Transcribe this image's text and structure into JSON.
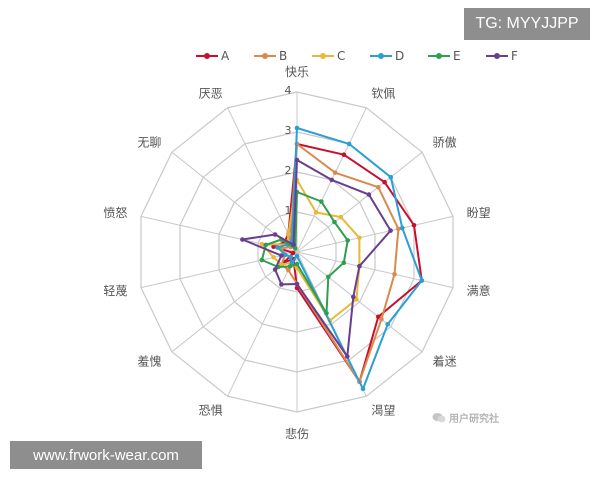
{
  "watermarks": {
    "telegram": "TG: MYYJJPP",
    "website": "www.frwork-wear.com",
    "source": "用户研究社"
  },
  "chart_data": {
    "type": "radar",
    "title": "",
    "axes": [
      "快乐",
      "钦佩",
      "骄傲",
      "盼望",
      "满意",
      "着迷",
      "渴望",
      "悲伤",
      "恐惧",
      "羞愧",
      "轻蔑",
      "愤怒",
      "无聊",
      "厌恶"
    ],
    "rmax": 4,
    "ticks": [
      1,
      2,
      3,
      4
    ],
    "grid": true,
    "legend_position": "top",
    "series": [
      {
        "name": "A",
        "color": "#c8102e",
        "values": [
          2.7,
          2.7,
          2.8,
          3.0,
          3.2,
          2.6,
          3.6,
          0.9,
          0.2,
          0.4,
          0.1,
          0.6,
          0.4,
          0.5
        ]
      },
      {
        "name": "B",
        "color": "#d98a4e",
        "values": [
          2.7,
          2.2,
          2.6,
          2.6,
          2.5,
          2.7,
          3.6,
          0.8,
          0.5,
          0.5,
          0.3,
          0.4,
          0.2,
          0.4
        ]
      },
      {
        "name": "C",
        "color": "#e8b838",
        "values": [
          1.8,
          1.1,
          1.4,
          1.6,
          1.6,
          1.9,
          1.9,
          0.4,
          0.3,
          0.5,
          0.6,
          0.9,
          0.3,
          0.5
        ]
      },
      {
        "name": "D",
        "color": "#2a9fd6",
        "values": [
          3.1,
          3.0,
          3.0,
          2.7,
          3.2,
          2.9,
          3.8,
          0.1,
          0.3,
          0.2,
          0.3,
          0.5,
          0.3,
          0.3
        ]
      },
      {
        "name": "E",
        "color": "#2e9e4f",
        "values": [
          1.5,
          1.4,
          1.2,
          1.3,
          1.2,
          1.0,
          1.7,
          0.3,
          0.4,
          0.6,
          0.9,
          0.8,
          0.5,
          0.1
        ]
      },
      {
        "name": "F",
        "color": "#6b3d8e",
        "values": [
          2.3,
          2.0,
          2.3,
          2.4,
          1.6,
          1.8,
          2.9,
          0.8,
          0.9,
          0.7,
          0.4,
          1.4,
          0.7,
          0.2
        ]
      }
    ]
  }
}
